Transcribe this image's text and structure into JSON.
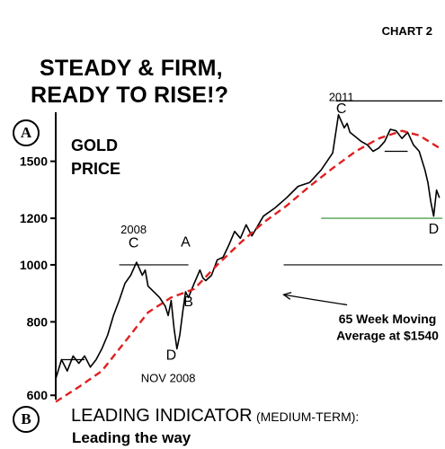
{
  "header": {
    "chart_number": "CHART 2"
  },
  "panel_a": {
    "marker": "A",
    "title_line1": "STEADY & FIRM,",
    "title_line2": "READY TO RISE!?",
    "subject_line1": "GOLD",
    "subject_line2": "PRICE"
  },
  "panel_b": {
    "marker": "B",
    "title": "LEADING INDICATOR",
    "subtitle": "(MEDIUM-TERM):",
    "caption": "Leading the way"
  },
  "colors": {
    "price": "#000000",
    "moving_average": "#e02020",
    "support_line": "#2e8b2e",
    "reference_line": "#000000"
  },
  "chart_data": {
    "type": "line",
    "scale": "log",
    "ylim": [
      590,
      1950
    ],
    "yticks": [
      600,
      800,
      1000,
      1200,
      1500
    ],
    "xlim": [
      2006.6,
      2013.3
    ],
    "grid": false,
    "legend": "none",
    "series": [
      {
        "name": "",
        "role": "price",
        "x": [
          2006.6,
          2006.7,
          2006.8,
          2006.9,
          2007.0,
          2007.1,
          2007.2,
          2007.3,
          2007.4,
          2007.5,
          2007.6,
          2007.7,
          2007.8,
          2007.9,
          2008.0,
          2008.1,
          2008.15,
          2008.2,
          2008.3,
          2008.4,
          2008.5,
          2008.55,
          2008.6,
          2008.65,
          2008.7,
          2008.75,
          2008.8,
          2008.85,
          2008.9,
          2009.0,
          2009.1,
          2009.15,
          2009.2,
          2009.3,
          2009.4,
          2009.5,
          2009.6,
          2009.7,
          2009.8,
          2009.9,
          2010.0,
          2010.2,
          2010.4,
          2010.6,
          2010.8,
          2011.0,
          2011.2,
          2011.4,
          2011.5,
          2011.6,
          2011.65,
          2011.7,
          2011.8,
          2011.9,
          2012.0,
          2012.1,
          2012.2,
          2012.3,
          2012.4,
          2012.5,
          2012.6,
          2012.7,
          2012.8,
          2012.9,
          2013.0,
          2013.05,
          2013.1,
          2013.15,
          2013.2,
          2013.25
        ],
        "values": [
          640,
          690,
          660,
          700,
          680,
          700,
          670,
          690,
          720,
          760,
          820,
          870,
          930,
          960,
          1010,
          960,
          980,
          920,
          900,
          880,
          850,
          820,
          870,
          780,
          720,
          760,
          830,
          900,
          880,
          930,
          980,
          950,
          940,
          960,
          1020,
          1030,
          1080,
          1140,
          1110,
          1170,
          1120,
          1210,
          1250,
          1300,
          1360,
          1380,
          1450,
          1550,
          1800,
          1710,
          1740,
          1680,
          1650,
          1620,
          1600,
          1560,
          1580,
          1620,
          1700,
          1690,
          1640,
          1680,
          1600,
          1560,
          1450,
          1380,
          1280,
          1210,
          1340,
          1300
        ]
      },
      {
        "name": "",
        "role": "moving_average",
        "x": [
          2006.6,
          2007.0,
          2007.4,
          2007.8,
          2008.2,
          2008.6,
          2009.0,
          2009.4,
          2009.8,
          2010.2,
          2010.6,
          2011.0,
          2011.4,
          2011.8,
          2012.2,
          2012.6,
          2012.9,
          2013.25
        ],
        "values": [
          585,
          620,
          660,
          740,
          830,
          880,
          910,
          1000,
          1090,
          1180,
          1260,
          1360,
          1460,
          1560,
          1640,
          1690,
          1660,
          1580
        ]
      }
    ],
    "annotations": [
      {
        "text": "2011",
        "x": 2011.55,
        "y": 1900
      },
      {
        "text": "C",
        "x": 2011.55,
        "y": 1810
      },
      {
        "text": "2008",
        "x": 2007.95,
        "y": 1130
      },
      {
        "text": "C",
        "x": 2007.95,
        "y": 1070
      },
      {
        "text": "A",
        "x": 2008.85,
        "y": 1075
      },
      {
        "text": "B",
        "x": 2008.9,
        "y": 850
      },
      {
        "text": "D",
        "x": 2008.6,
        "y": 690
      },
      {
        "text": "NOV 2008",
        "x": 2008.55,
        "y": 632
      },
      {
        "text": "D",
        "x": 2013.15,
        "y": 1130
      },
      {
        "text": "65 Week Moving",
        "x": 2012.35,
        "y": 795
      },
      {
        "text": "Average at $1540",
        "x": 2012.35,
        "y": 745
      }
    ],
    "reference_lines": [
      {
        "y": 1900,
        "x0": 2011.45,
        "x1": 2013.3,
        "color": "#000000"
      },
      {
        "y": 1560,
        "x0": 2012.3,
        "x1": 2012.7,
        "color": "#000000"
      },
      {
        "y": 1200,
        "x0": 2011.2,
        "x1": 2013.3,
        "color": "#2e8b2e"
      },
      {
        "y": 1000,
        "x0": 2007.7,
        "x1": 2008.9,
        "color": "#000000"
      },
      {
        "y": 1000,
        "x0": 2010.55,
        "x1": 2013.3,
        "color": "#000000"
      },
      {
        "y": 690,
        "x0": 2006.7,
        "x1": 2007.1,
        "color": "#000000"
      }
    ],
    "arrow": {
      "from": {
        "x": 2011.65,
        "y": 855
      },
      "to": {
        "x": 2010.55,
        "y": 890
      }
    }
  }
}
